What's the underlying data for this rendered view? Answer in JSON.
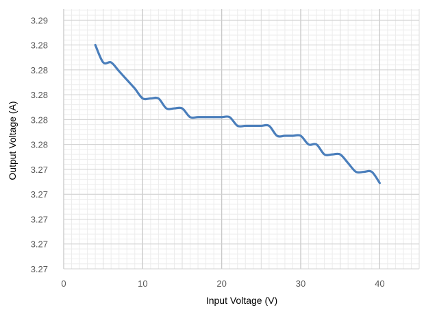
{
  "chart_data": {
    "type": "line",
    "xlabel": "Input Voltage (V)",
    "ylabel": "Output Voltage (A)",
    "xlim": [
      0,
      45
    ],
    "ylim": [
      3.2691,
      3.29
    ],
    "x_ticks": [
      0,
      10,
      20,
      30,
      40
    ],
    "y_ticks": [
      {
        "value": 3.2691,
        "label": "3.27"
      },
      {
        "value": 3.2711,
        "label": "3.27"
      },
      {
        "value": 3.2731,
        "label": "3.27"
      },
      {
        "value": 3.2751,
        "label": "3.27"
      },
      {
        "value": 3.2771,
        "label": "3.27"
      },
      {
        "value": 3.2791,
        "label": "3.28"
      },
      {
        "value": 3.2811,
        "label": "3.28"
      },
      {
        "value": 3.2831,
        "label": "3.28"
      },
      {
        "value": 3.2851,
        "label": "3.28"
      },
      {
        "value": 3.2871,
        "label": "3.28"
      },
      {
        "value": 3.2891,
        "label": "3.29"
      }
    ],
    "grid": true,
    "legend": "none",
    "series": [
      {
        "color": "#4a7ebb",
        "x": [
          4,
          5,
          6,
          7,
          8,
          9,
          10,
          11,
          12,
          13,
          14,
          15,
          16,
          17,
          18,
          19,
          20,
          21,
          22,
          23,
          24,
          25,
          26,
          27,
          28,
          29,
          30,
          31,
          32,
          33,
          34,
          35,
          36,
          37,
          38,
          39,
          40
        ],
        "y": [
          3.2871,
          3.2857,
          3.2857,
          3.285,
          3.2843,
          3.2836,
          3.2828,
          3.2828,
          3.2828,
          3.282,
          3.282,
          3.282,
          3.2813,
          3.2813,
          3.2813,
          3.2813,
          3.2813,
          3.2813,
          3.2806,
          3.2806,
          3.2806,
          3.2806,
          3.2806,
          3.2798,
          3.2798,
          3.2798,
          3.2798,
          3.2791,
          3.2791,
          3.2783,
          3.2783,
          3.2783,
          3.2776,
          3.2769,
          3.2769,
          3.2769,
          3.276
        ]
      }
    ]
  }
}
